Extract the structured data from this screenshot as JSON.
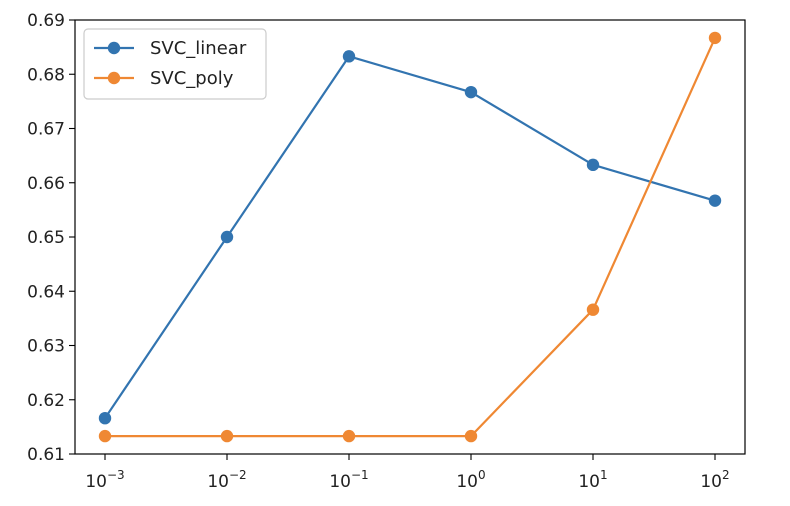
{
  "chart_data": {
    "type": "line",
    "title": "",
    "xlabel": "",
    "ylabel": "",
    "x_scale": "log",
    "x": [
      0.001,
      0.01,
      0.1,
      1,
      10,
      100
    ],
    "x_tick_labels": [
      {
        "base": "10",
        "exp": "−3"
      },
      {
        "base": "10",
        "exp": "−2"
      },
      {
        "base": "10",
        "exp": "−1"
      },
      {
        "base": "10",
        "exp": "0"
      },
      {
        "base": "10",
        "exp": "1"
      },
      {
        "base": "10",
        "exp": "2"
      }
    ],
    "ylim": [
      0.61,
      0.69
    ],
    "y_ticks": [
      0.61,
      0.62,
      0.63,
      0.64,
      0.65,
      0.66,
      0.67,
      0.68,
      0.69
    ],
    "y_tick_labels": [
      "0.61",
      "0.62",
      "0.63",
      "0.64",
      "0.65",
      "0.66",
      "0.67",
      "0.68",
      "0.69"
    ],
    "grid": false,
    "legend_position": "upper-left",
    "series": [
      {
        "name": "SVC_linear",
        "color": "#3274b0",
        "values": [
          0.6166,
          0.65,
          0.6833,
          0.6767,
          0.6633,
          0.6567
        ]
      },
      {
        "name": "SVC_poly",
        "color": "#ef8833",
        "values": [
          0.6133,
          0.6133,
          0.6133,
          0.6133,
          0.6366,
          0.6867
        ]
      }
    ]
  }
}
